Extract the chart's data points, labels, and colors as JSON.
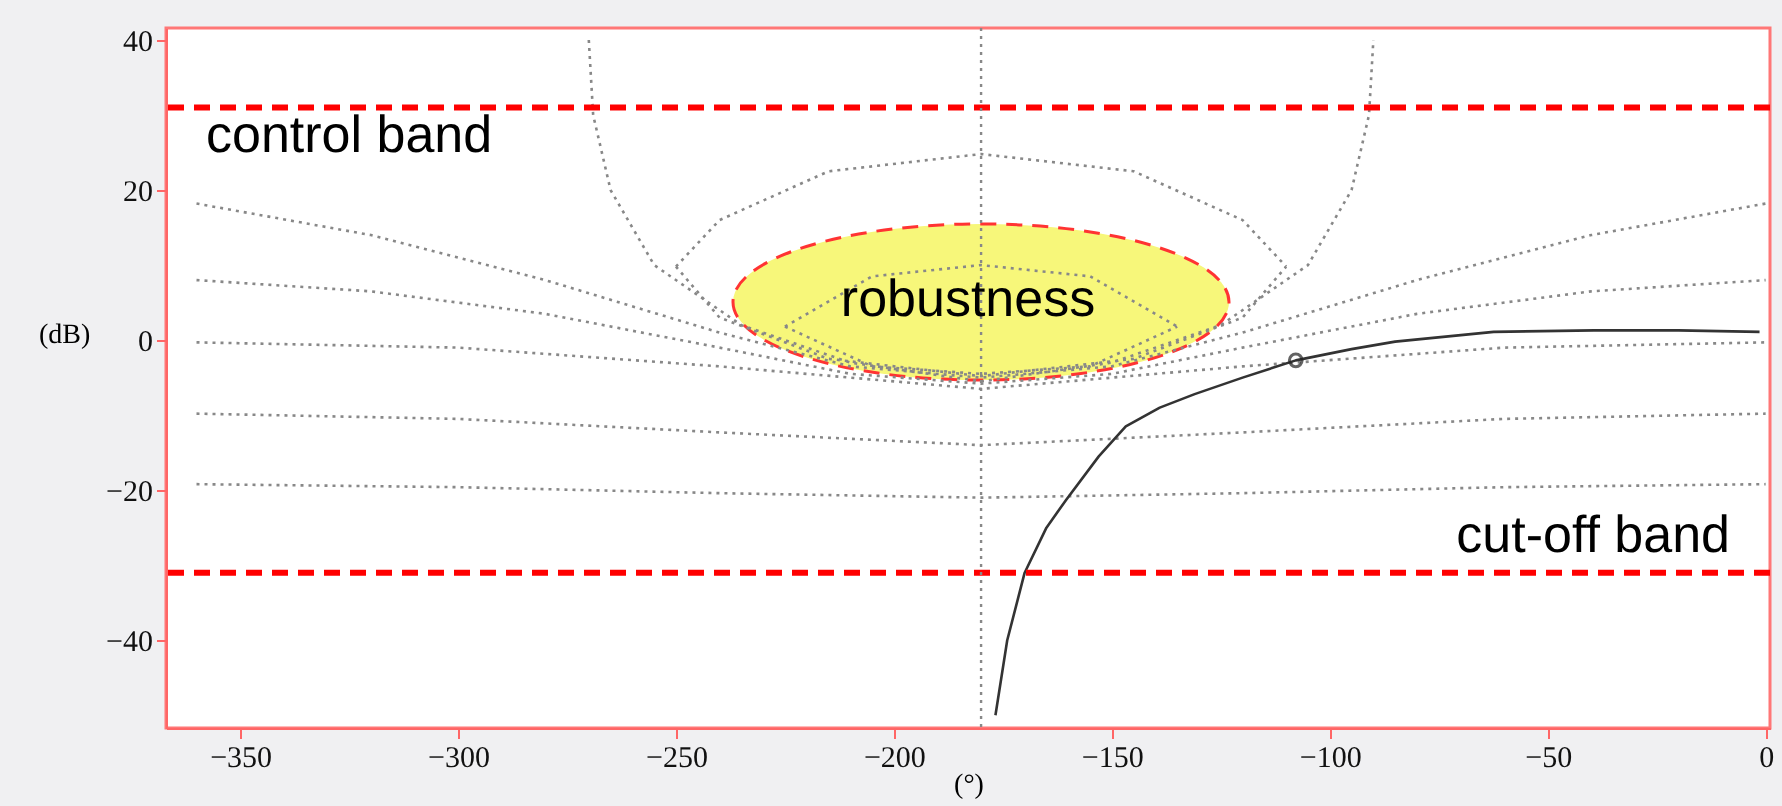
{
  "chart_data": {
    "type": "line",
    "xlabel": "(°)",
    "ylabel": "(dB)",
    "xlim": [
      -367,
      1
    ],
    "ylim": [
      -51.7,
      41.6
    ],
    "xticks": [
      -350,
      -300,
      -250,
      -200,
      -150,
      -100,
      -50,
      0
    ],
    "yticks": [
      -40,
      -20,
      0,
      20,
      40
    ],
    "grid": false,
    "series": [
      {
        "line_style": "dotted",
        "color": "#888888",
        "x": [
          -360,
          -320,
          -280,
          -240,
          -210,
          -180,
          -150,
          -120,
          -80,
          -40,
          0
        ],
        "values": [
          18.2,
          14,
          8,
          1,
          -3.5,
          -5,
          -3.5,
          1,
          8,
          14,
          18.2
        ]
      },
      {
        "line_style": "dotted",
        "color": "#888888",
        "x": [
          -360,
          -320,
          -280,
          -240,
          -210,
          -180,
          -150,
          -120,
          -80,
          -40,
          0
        ],
        "values": [
          8,
          6.5,
          3.5,
          -1,
          -4.5,
          -5.8,
          -4.5,
          -1,
          3.5,
          6.5,
          8
        ]
      },
      {
        "line_style": "dotted",
        "color": "#888888",
        "x": [
          -360,
          -300,
          -240,
          -180,
          -120,
          -60,
          0
        ],
        "values": [
          -0.3,
          -1,
          -3.5,
          -6.5,
          -3.5,
          -1,
          -0.3
        ]
      },
      {
        "line_style": "dotted",
        "color": "#888888",
        "x": [
          -360,
          -300,
          -240,
          -180,
          -120,
          -60,
          0
        ],
        "values": [
          -9.8,
          -10.5,
          -12.3,
          -14,
          -12.3,
          -10.5,
          -9.8
        ]
      },
      {
        "line_style": "dotted",
        "color": "#888888",
        "x": [
          -360,
          -300,
          -240,
          -180,
          -120,
          -60,
          0
        ],
        "values": [
          -19.2,
          -19.6,
          -20.4,
          -21,
          -20.4,
          -19.6,
          -19.2
        ]
      },
      {
        "line_style": "dotted",
        "color": "#888888",
        "x": [
          -270,
          -269,
          -265,
          -255,
          -235,
          -210,
          -180,
          -150,
          -125,
          -105,
          -95,
          -91,
          -90
        ],
        "values": [
          40,
          30,
          20,
          10,
          2,
          -3,
          -5.5,
          -3,
          2,
          10,
          20,
          30,
          40
        ]
      },
      {
        "line_style": "dotted",
        "color": "#888888",
        "x": [
          -250,
          -240,
          -215,
          -180,
          -145,
          -120,
          -110
        ],
        "values": [
          9.8,
          16,
          22.5,
          24.8,
          22.5,
          16,
          9.8
        ]
      },
      {
        "line_style": "dotted",
        "color": "#888888",
        "x": [
          -250,
          -240,
          -215,
          -180,
          -145,
          -120,
          -110
        ],
        "values": [
          9.8,
          3,
          -2.5,
          -4.8,
          -2.5,
          3,
          9.8
        ]
      },
      {
        "line_style": "dotted",
        "color": "#888888",
        "x": [
          -225,
          -205,
          -180,
          -155,
          -135
        ],
        "values": [
          1.8,
          8.5,
          10,
          8.5,
          1.8
        ]
      },
      {
        "line_style": "dotted",
        "color": "#888888",
        "x": [
          -225,
          -205,
          -180,
          -155,
          -135
        ],
        "values": [
          1.8,
          -3.5,
          -4.5,
          -3.5,
          1.8
        ]
      },
      {
        "line_style": "solid",
        "color": "#333333",
        "x": [
          -176.7,
          -174,
          -170,
          -165,
          -160.5,
          -153,
          -146.8,
          -139,
          -131,
          -120,
          -107.8,
          -95,
          -85,
          -62.4,
          -39.4,
          -20,
          -1.4
        ],
        "values": [
          -50,
          -40,
          -31,
          -25,
          -21.3,
          -15.5,
          -11.5,
          -9,
          -7.2,
          -5,
          -2.7,
          -1.2,
          -0.2,
          1.1,
          1.3,
          1.3,
          1.1
        ]
      },
      {
        "type": "scatter",
        "marker": "circle",
        "color": "#222222",
        "x": [
          -107.8
        ],
        "values": [
          -2.7
        ]
      }
    ],
    "ref_lines": [
      {
        "axis": "y",
        "value": 31,
        "color": "#ff0000",
        "line_style": "dashed"
      },
      {
        "axis": "y",
        "value": -31,
        "color": "#ff0000",
        "line_style": "dashed"
      },
      {
        "axis": "x",
        "value": -180,
        "color": "#888888",
        "line_style": "dotted"
      }
    ],
    "annotations": [
      "control band",
      "cut-off band",
      "robustness"
    ]
  }
}
